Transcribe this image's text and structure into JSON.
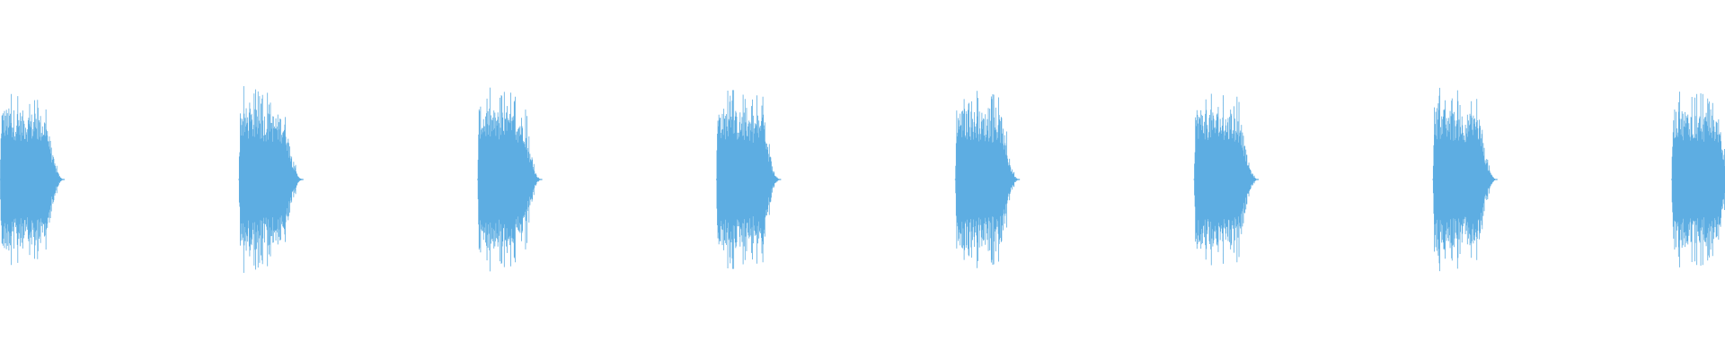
{
  "waveform": {
    "color": "#5dade2"
  }
}
